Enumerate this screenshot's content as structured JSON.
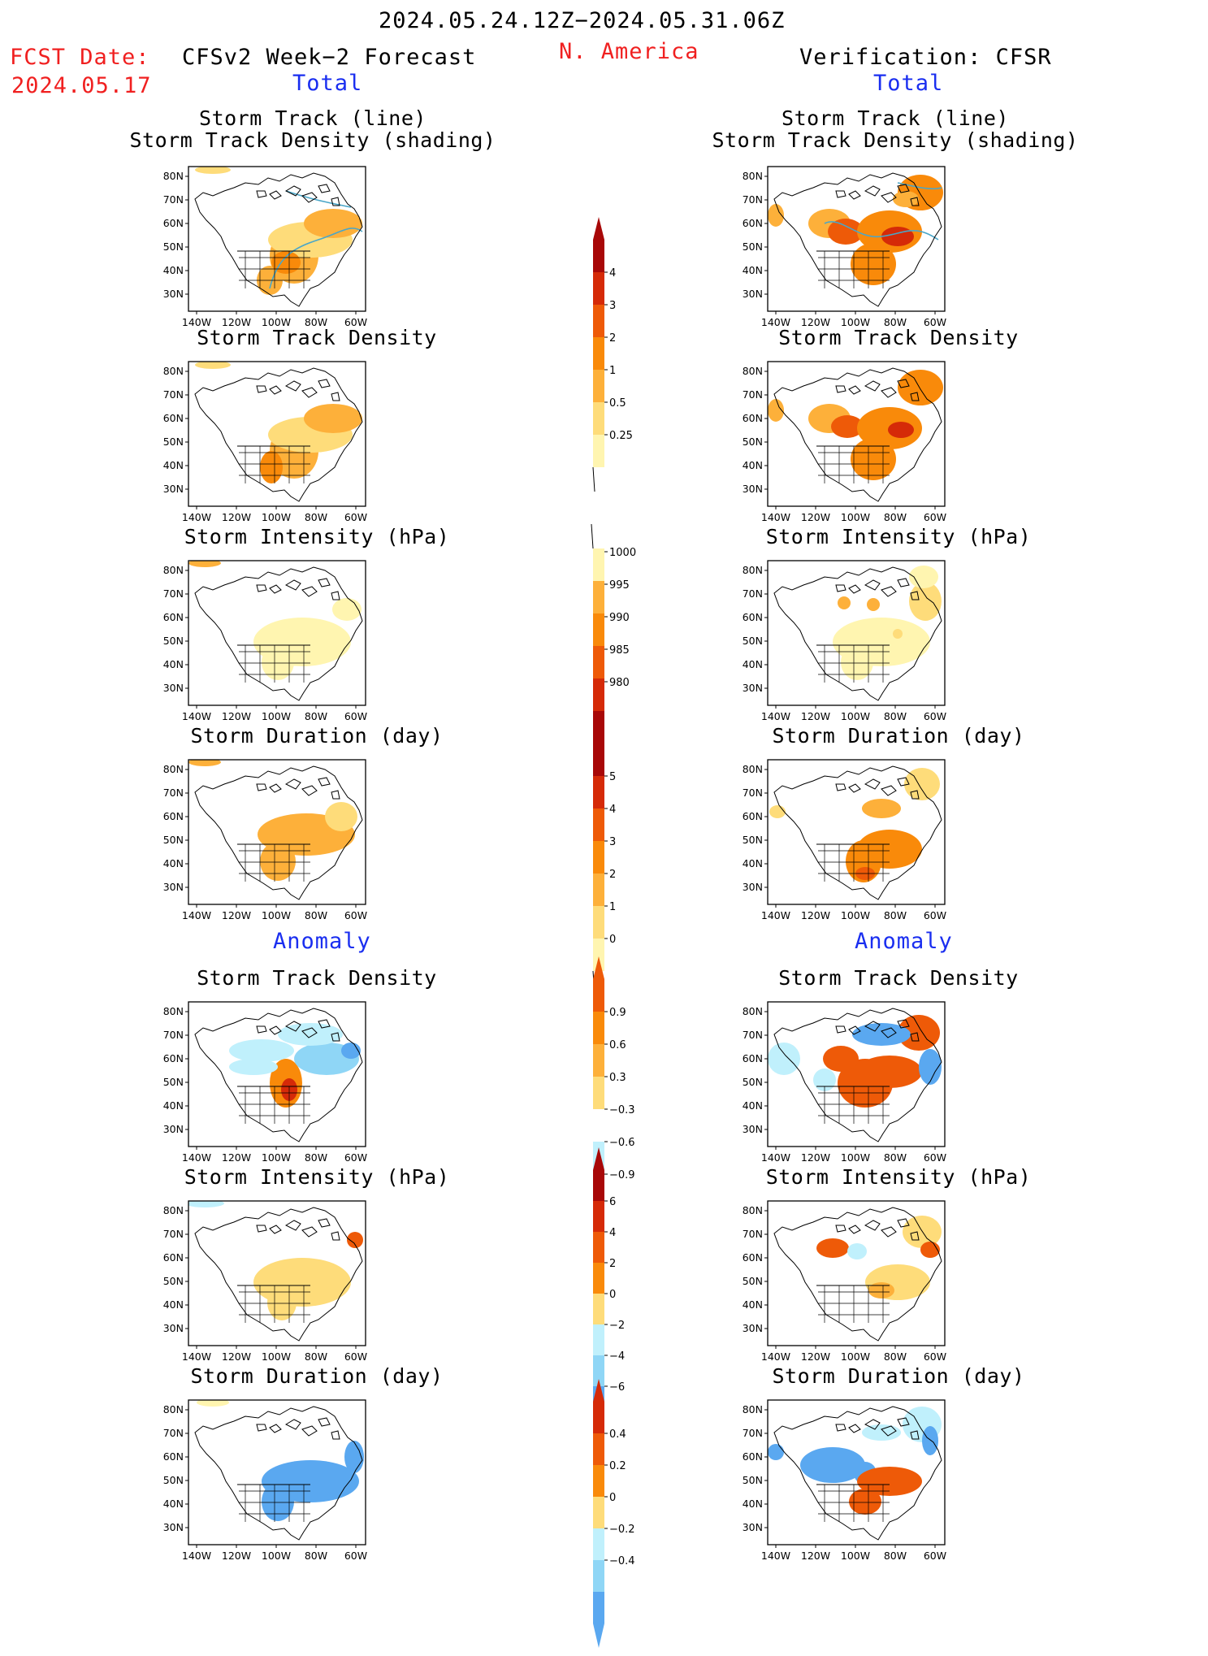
{
  "header": {
    "date_range": "2024.05.24.12Z−2024.05.31.06Z",
    "fcst_label": "FCST Date:",
    "fcst_date": "2024.05.17",
    "left_title": "CFSv2 Week−2 Forecast",
    "region": "N. America",
    "right_title": "Verification: CFSR",
    "total_left": "Total",
    "total_right": "Total",
    "anomaly_left": "Anomaly",
    "anomaly_right": "Anomaly"
  },
  "axes": {
    "lat_labels": [
      "80N",
      "70N",
      "60N",
      "50N",
      "40N",
      "30N"
    ],
    "lon_labels": [
      "140W",
      "120W",
      "100W",
      "80W",
      "60W"
    ]
  },
  "panel_titles": {
    "track_line": "Storm Track (line)",
    "track_shading": "Storm Track Density (shading)",
    "density": "Storm Track Density",
    "intensity": "Storm Intensity (hPa)",
    "duration": "Storm Duration (day)"
  },
  "colorbars": {
    "density": [
      "4",
      "3",
      "2",
      "1",
      "0.5",
      "0.25"
    ],
    "intensity": [
      "1000",
      "995",
      "990",
      "985",
      "980"
    ],
    "duration": [
      "5",
      "4",
      "3",
      "2",
      "1",
      "0"
    ],
    "density_anom": [
      "0.9",
      "0.6",
      "0.3",
      "−0.3",
      "−0.6",
      "−0.9"
    ],
    "intensity_anom": [
      "6",
      "4",
      "2",
      "0",
      "−2",
      "−4",
      "−6"
    ],
    "duration_anom": [
      "0.4",
      "0.2",
      "0",
      "−0.2",
      "−0.4"
    ]
  },
  "colors": {
    "warm": [
      "#fff5b0",
      "#fedc7a",
      "#fdb03a",
      "#f98a0a",
      "#ee5a08",
      "#d52a08",
      "#a80808"
    ],
    "cool": [
      "#c0f0fc",
      "#8fd6f6",
      "#5aa8f0",
      "#2a70e0",
      "#1046c8"
    ],
    "track_line": "#4aa6c8",
    "text_red": "#f02020",
    "text_blue": "#1a2ef0"
  }
}
